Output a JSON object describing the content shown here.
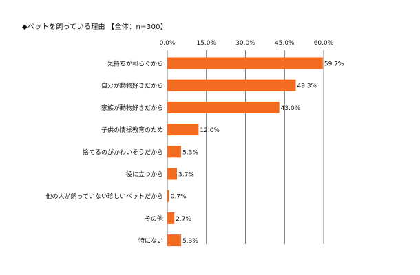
{
  "chart_data": {
    "type": "bar",
    "orientation": "horizontal",
    "title": "◆ペットを飼っている理由 【全体：n=300】",
    "categories": [
      "気持ちが和らぐから",
      "自分が動物好きだから",
      "家族が動物好きだから",
      "子供の情操教育のため",
      "捨てるのがかわいそうだから",
      "役に立つから",
      "他の人が飼っていない珍しいペットだから",
      "その他",
      "特にない"
    ],
    "values": [
      59.7,
      49.3,
      43.0,
      12.0,
      5.3,
      3.7,
      0.7,
      2.7,
      5.3
    ],
    "value_labels": [
      "59.7%",
      "49.3%",
      "43.0%",
      "12.0%",
      "5.3%",
      "3.7%",
      "0.7%",
      "2.7%",
      "5.3%"
    ],
    "xlim": [
      0,
      60
    ],
    "xticks": [
      0,
      15,
      30,
      45,
      60
    ],
    "xtick_labels": [
      "0.0%",
      "15.0%",
      "30.0%",
      "45.0%",
      "60.0%"
    ],
    "axis_position": "top",
    "grid": true,
    "legend": "none",
    "colors": {
      "bar": "#f26b21",
      "grid": "#555555",
      "text": "#111111"
    }
  }
}
